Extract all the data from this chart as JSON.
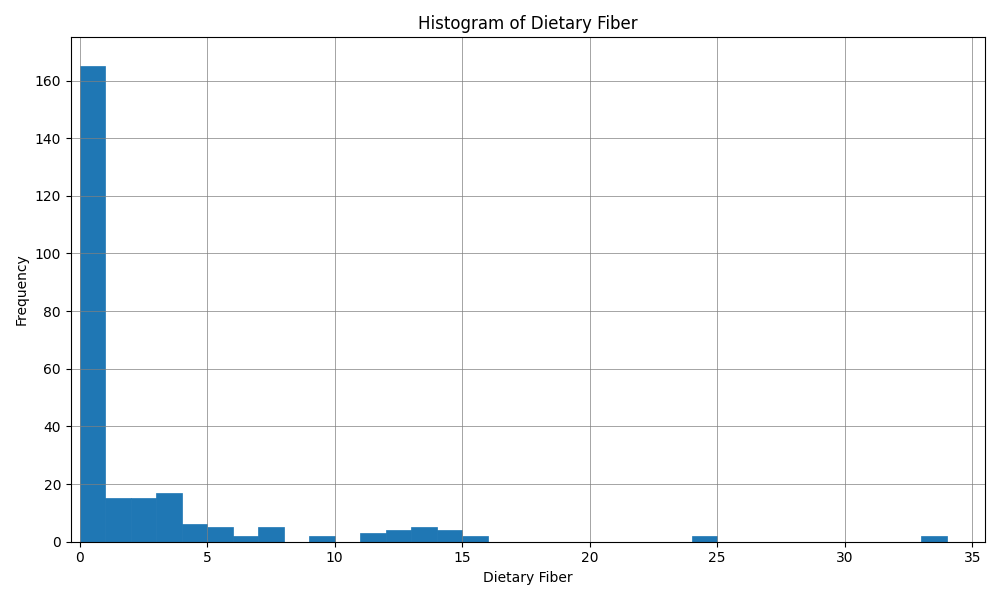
{
  "title": "Histogram of Dietary Fiber",
  "xlabel": "Dietary Fiber",
  "ylabel": "Frequency",
  "bar_color": "#1f77b4",
  "edgecolor": "#1f77b4",
  "figsize": [
    10,
    6
  ],
  "dpi": 100,
  "xlim": [
    -0.35,
    35.5
  ],
  "ylim": [
    0,
    175
  ],
  "xticks": [
    0,
    5,
    10,
    15,
    20,
    25,
    30,
    35
  ],
  "yticks": [
    0,
    20,
    40,
    60,
    80,
    100,
    120,
    140,
    160
  ],
  "bin_edges": [
    0,
    1,
    2,
    3,
    4,
    5,
    6,
    7,
    8,
    9,
    10,
    11,
    12,
    13,
    14,
    15,
    16,
    17,
    18,
    19,
    20,
    21,
    22,
    23,
    24,
    25,
    26,
    27,
    28,
    29,
    30,
    31,
    32,
    33,
    34,
    35
  ],
  "counts": [
    165,
    15,
    15,
    17,
    6,
    5,
    2,
    5,
    0,
    2,
    0,
    3,
    4,
    5,
    4,
    2,
    0,
    0,
    0,
    0,
    0,
    0,
    0,
    0,
    2,
    0,
    0,
    0,
    0,
    0,
    0,
    0,
    0,
    2,
    0
  ]
}
